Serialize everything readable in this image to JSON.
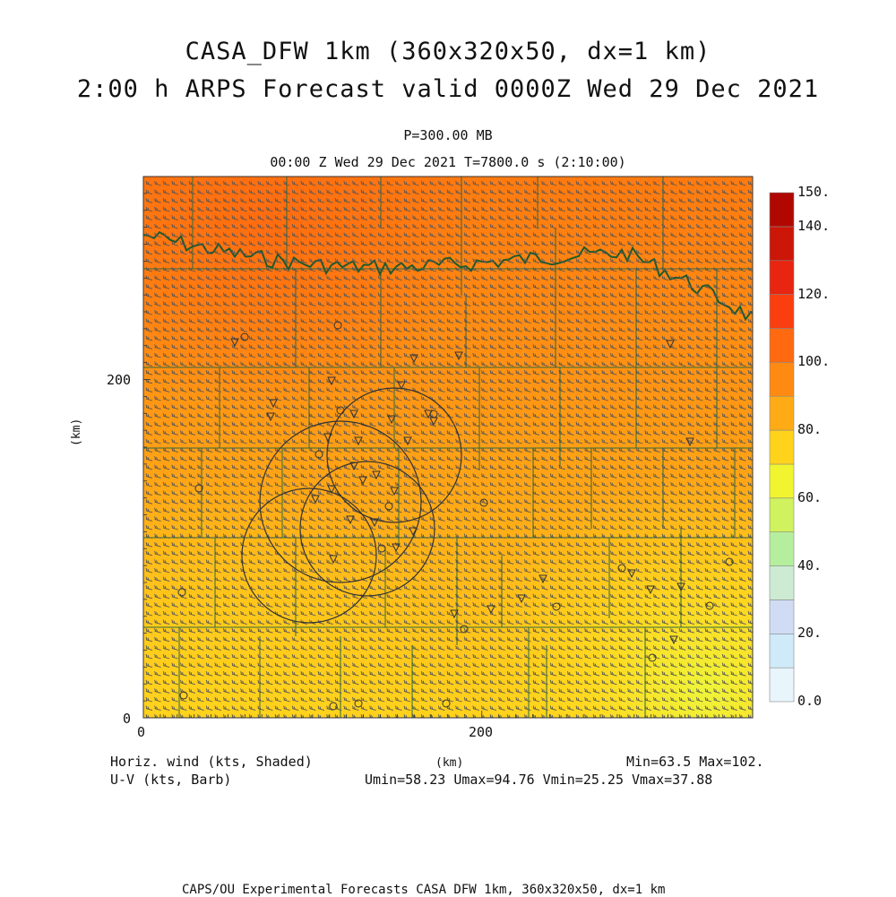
{
  "title": {
    "line1": "CASA_DFW 1km (360x320x50, dx=1 km)",
    "line2": "2:00 h ARPS Forecast valid 0000Z Wed 29 Dec 2021"
  },
  "level_label": "P=300.00 MB",
  "time_label": "00:00 Z Wed 29 Dec 2021   T=7800.0 s (2:10:00)",
  "axes": {
    "x_label": "(km)",
    "y_label": "(km)",
    "x_ticks": [
      "0",
      "200"
    ],
    "y_ticks": [
      "0",
      "200"
    ]
  },
  "colorbar": {
    "tick_labels": [
      "0.0",
      "20.",
      "40.",
      "60.",
      "80.",
      "100.",
      "120.",
      "140.",
      "150."
    ],
    "colors": [
      "#e8f6fc",
      "#cfeaf8",
      "#cfdcf4",
      "#cdebd3",
      "#b5ef9e",
      "#cff25e",
      "#f0f530",
      "#ffd21c",
      "#ffab16",
      "#ff8a12",
      "#ff6a10",
      "#fb3e10",
      "#e82510",
      "#cc1608",
      "#b00800"
    ]
  },
  "footer": {
    "var1": "Horiz. wind (kts, Shaded)",
    "var2": "U-V (kts, Barb)",
    "units": "(km)",
    "minmax": "Min=63.5 Max=102.",
    "uv_stats": "Umin=58.23 Umax=94.76 Vmin=25.25 Vmax=37.88",
    "credit": "CAPS/OU Experimental Forecasts  CASA DFW 1km, 360x320x50, dx=1 km"
  },
  "map_colors": {
    "county_lines": "#2f6a3a",
    "red_river": "#1f5a2c",
    "radar_rings": "#333333",
    "barbs": "#555555"
  }
}
